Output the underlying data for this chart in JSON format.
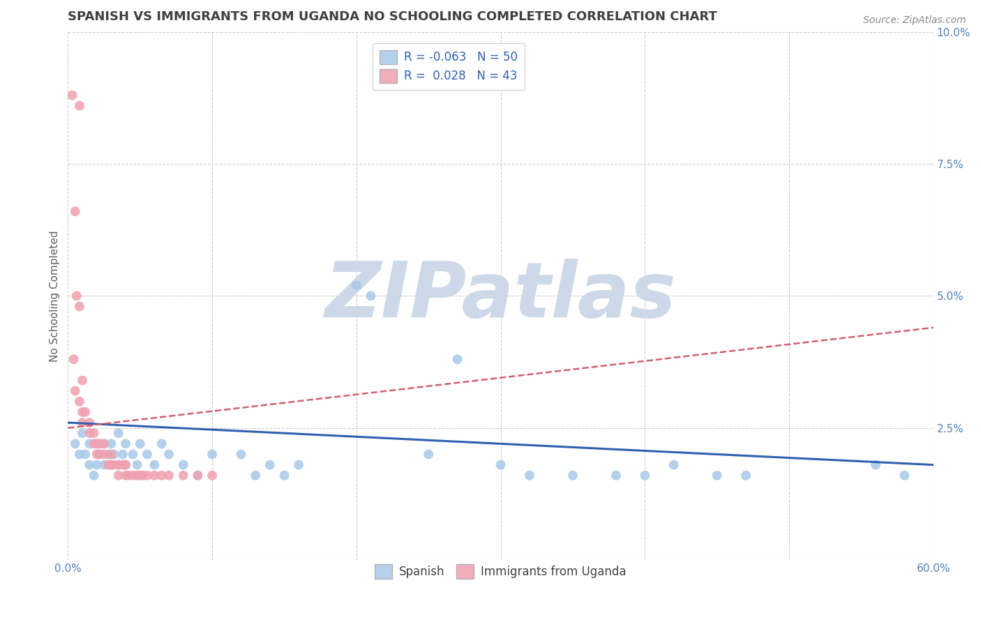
{
  "title": "SPANISH VS IMMIGRANTS FROM UGANDA NO SCHOOLING COMPLETED CORRELATION CHART",
  "source": "Source: ZipAtlas.com",
  "ylabel": "No Schooling Completed",
  "xlim": [
    0,
    0.6
  ],
  "ylim": [
    0,
    0.1
  ],
  "xticks": [
    0.0,
    0.6
  ],
  "yticks": [
    0.0,
    0.025,
    0.05,
    0.075,
    0.1
  ],
  "xticklabels": [
    "0.0%",
    "60.0%"
  ],
  "yticklabels": [
    "",
    "2.5%",
    "5.0%",
    "7.5%",
    "10.0%"
  ],
  "watermark": "ZIPatlas",
  "watermark_color": "#cdd8e8",
  "blue_color": "#a8c8e8",
  "pink_color": "#f0a0b0",
  "blue_line_color": "#3060b0",
  "pink_line_color": "#d06070",
  "background_color": "#ffffff",
  "grid_color": "#cccccc",
  "title_color": "#404040",
  "axis_label_color": "#606060",
  "tick_label_color": "#5080c0",
  "blue_scatter": [
    [
      0.005,
      0.022
    ],
    [
      0.008,
      0.02
    ],
    [
      0.01,
      0.024
    ],
    [
      0.012,
      0.02
    ],
    [
      0.015,
      0.018
    ],
    [
      0.015,
      0.022
    ],
    [
      0.018,
      0.016
    ],
    [
      0.02,
      0.018
    ],
    [
      0.02,
      0.022
    ],
    [
      0.022,
      0.02
    ],
    [
      0.025,
      0.018
    ],
    [
      0.025,
      0.022
    ],
    [
      0.028,
      0.02
    ],
    [
      0.03,
      0.018
    ],
    [
      0.03,
      0.022
    ],
    [
      0.032,
      0.02
    ],
    [
      0.035,
      0.018
    ],
    [
      0.035,
      0.024
    ],
    [
      0.038,
      0.02
    ],
    [
      0.04,
      0.022
    ],
    [
      0.04,
      0.018
    ],
    [
      0.045,
      0.02
    ],
    [
      0.048,
      0.018
    ],
    [
      0.05,
      0.022
    ],
    [
      0.055,
      0.02
    ],
    [
      0.06,
      0.018
    ],
    [
      0.065,
      0.022
    ],
    [
      0.07,
      0.02
    ],
    [
      0.08,
      0.018
    ],
    [
      0.09,
      0.016
    ],
    [
      0.1,
      0.02
    ],
    [
      0.12,
      0.02
    ],
    [
      0.13,
      0.016
    ],
    [
      0.14,
      0.018
    ],
    [
      0.15,
      0.016
    ],
    [
      0.16,
      0.018
    ],
    [
      0.2,
      0.052
    ],
    [
      0.21,
      0.05
    ],
    [
      0.25,
      0.02
    ],
    [
      0.27,
      0.038
    ],
    [
      0.3,
      0.018
    ],
    [
      0.32,
      0.016
    ],
    [
      0.35,
      0.016
    ],
    [
      0.38,
      0.016
    ],
    [
      0.4,
      0.016
    ],
    [
      0.42,
      0.018
    ],
    [
      0.45,
      0.016
    ],
    [
      0.47,
      0.016
    ],
    [
      0.56,
      0.018
    ],
    [
      0.58,
      0.016
    ]
  ],
  "pink_scatter": [
    [
      0.003,
      0.088
    ],
    [
      0.008,
      0.086
    ],
    [
      0.005,
      0.066
    ],
    [
      0.006,
      0.05
    ],
    [
      0.008,
      0.048
    ],
    [
      0.004,
      0.038
    ],
    [
      0.01,
      0.034
    ],
    [
      0.005,
      0.032
    ],
    [
      0.008,
      0.03
    ],
    [
      0.01,
      0.028
    ],
    [
      0.012,
      0.028
    ],
    [
      0.015,
      0.026
    ],
    [
      0.01,
      0.026
    ],
    [
      0.018,
      0.024
    ],
    [
      0.015,
      0.024
    ],
    [
      0.02,
      0.022
    ],
    [
      0.018,
      0.022
    ],
    [
      0.022,
      0.022
    ],
    [
      0.02,
      0.02
    ],
    [
      0.025,
      0.022
    ],
    [
      0.022,
      0.02
    ],
    [
      0.025,
      0.02
    ],
    [
      0.028,
      0.018
    ],
    [
      0.03,
      0.02
    ],
    [
      0.03,
      0.018
    ],
    [
      0.032,
      0.018
    ],
    [
      0.035,
      0.018
    ],
    [
      0.035,
      0.016
    ],
    [
      0.038,
      0.018
    ],
    [
      0.04,
      0.018
    ],
    [
      0.04,
      0.016
    ],
    [
      0.042,
      0.016
    ],
    [
      0.045,
      0.016
    ],
    [
      0.048,
      0.016
    ],
    [
      0.05,
      0.016
    ],
    [
      0.052,
      0.016
    ],
    [
      0.055,
      0.016
    ],
    [
      0.06,
      0.016
    ],
    [
      0.065,
      0.016
    ],
    [
      0.07,
      0.016
    ],
    [
      0.08,
      0.016
    ],
    [
      0.09,
      0.016
    ],
    [
      0.1,
      0.016
    ]
  ],
  "blue_trend": [
    0.0,
    0.6,
    0.026,
    0.018
  ],
  "pink_trend": [
    0.0,
    0.6,
    0.025,
    0.044
  ]
}
